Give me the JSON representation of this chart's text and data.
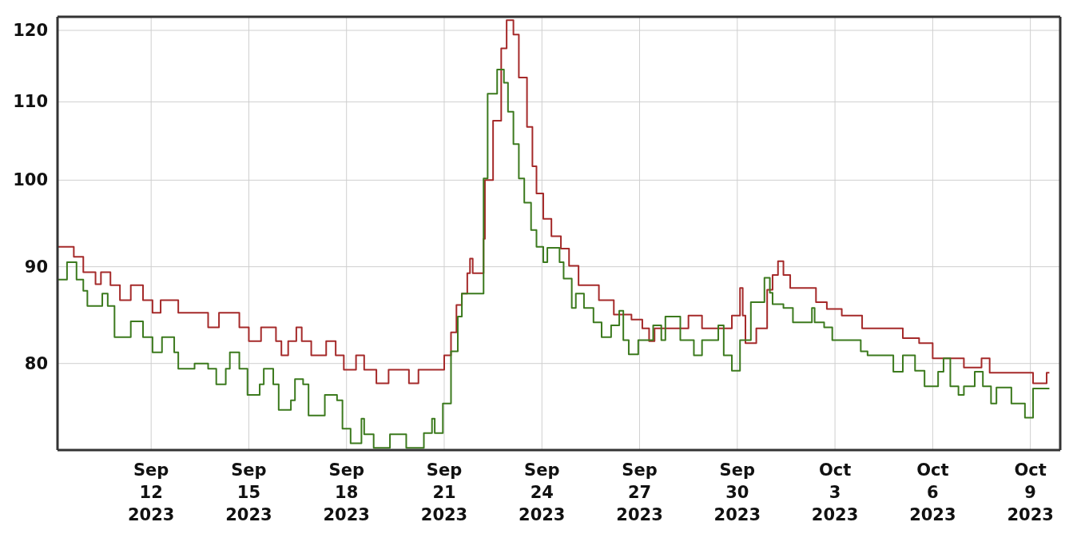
{
  "chart_data": {
    "type": "step",
    "xlim": [
      "2023-09-09T03:00",
      "2023-10-09T22:00"
    ],
    "xticks": [
      {
        "value": "2023-09-12",
        "label": "Sep\n12\n2023"
      },
      {
        "value": "2023-09-15",
        "label": "Sep\n15\n2023"
      },
      {
        "value": "2023-09-18",
        "label": "Sep\n18\n2023"
      },
      {
        "value": "2023-09-21",
        "label": "Sep\n21\n2023"
      },
      {
        "value": "2023-09-24",
        "label": "Sep\n24\n2023"
      },
      {
        "value": "2023-09-27",
        "label": "Sep\n27\n2023"
      },
      {
        "value": "2023-09-30",
        "label": "Sep\n30\n2023"
      },
      {
        "value": "2023-10-03",
        "label": "Oct\n3\n2023"
      },
      {
        "value": "2023-10-06",
        "label": "Oct\n6\n2023"
      },
      {
        "value": "2023-10-09",
        "label": "Oct\n9\n2023"
      }
    ],
    "ylim": [
      72,
      122
    ],
    "yticks": [
      80,
      90,
      100,
      110,
      120
    ],
    "log": true,
    "grid": true,
    "series": [
      {
        "color": "#a52a2a",
        "x": [
          "2023-09-09T03:00",
          "2023-09-09T15:00",
          "2023-09-09T22:00",
          "2023-09-10T07:00",
          "2023-09-10T11:00",
          "2023-09-10T18:00",
          "2023-09-11T01:00",
          "2023-09-11T09:00",
          "2023-09-11T18:00",
          "2023-09-12T01:00",
          "2023-09-12T07:00",
          "2023-09-12T20:00",
          "2023-09-13T18:00",
          "2023-09-14T02:00",
          "2023-09-14T17:00",
          "2023-09-15T00:00",
          "2023-09-15T09:00",
          "2023-09-15T20:00",
          "2023-09-16T00:00",
          "2023-09-16T05:00",
          "2023-09-16T11:00",
          "2023-09-16T15:00",
          "2023-09-16T22:00",
          "2023-09-17T09:00",
          "2023-09-17T16:00",
          "2023-09-17T22:00",
          "2023-09-18T07:00",
          "2023-09-18T13:00",
          "2023-09-18T22:00",
          "2023-09-19T07:00",
          "2023-09-19T22:00",
          "2023-09-20T05:00",
          "2023-09-21T00:00",
          "2023-09-21T05:00",
          "2023-09-21T09:00",
          "2023-09-21T13:00",
          "2023-09-21T17:00",
          "2023-09-21T19:00",
          "2023-09-21T21:00",
          "2023-09-22T05:00",
          "2023-09-22T06:00",
          "2023-09-22T12:00",
          "2023-09-22T18:00",
          "2023-09-22T22:00",
          "2023-09-23T03:00",
          "2023-09-23T07:00",
          "2023-09-23T13:00",
          "2023-09-23T17:00",
          "2023-09-23T20:00",
          "2023-09-24T01:00",
          "2023-09-24T07:00",
          "2023-09-24T14:00",
          "2023-09-24T20:00",
          "2023-09-25T03:00",
          "2023-09-25T18:00",
          "2023-09-26T05:00",
          "2023-09-26T18:00",
          "2023-09-27T02:00",
          "2023-09-27T07:00",
          "2023-09-27T11:00",
          "2023-09-28T12:00",
          "2023-09-28T22:00",
          "2023-09-29T20:00",
          "2023-09-30T02:00",
          "2023-09-30T04:00",
          "2023-09-30T06:00",
          "2023-09-30T14:00",
          "2023-09-30T22:00",
          "2023-10-01T02:00",
          "2023-10-01T06:00",
          "2023-10-01T10:00",
          "2023-10-01T15:00",
          "2023-10-02T10:00",
          "2023-10-02T18:00",
          "2023-10-03T05:00",
          "2023-10-03T20:00",
          "2023-10-05T02:00",
          "2023-10-05T14:00",
          "2023-10-06T00:00",
          "2023-10-06T23:00",
          "2023-10-07T12:00",
          "2023-10-07T18:00",
          "2023-10-09T02:00",
          "2023-10-09T12:00",
          "2023-10-09T14:00"
        ],
        "values": [
          92.2,
          91.1,
          89.4,
          88.1,
          89.4,
          88.0,
          86.4,
          88.0,
          86.4,
          85.1,
          86.4,
          85.1,
          83.6,
          85.1,
          83.6,
          82.2,
          83.6,
          82.2,
          80.8,
          82.2,
          83.6,
          82.2,
          80.8,
          82.2,
          80.8,
          79.4,
          80.8,
          79.4,
          78.1,
          79.4,
          78.1,
          79.4,
          80.8,
          83.1,
          85.9,
          87.1,
          89.3,
          90.9,
          89.3,
          93.1,
          100,
          107.5,
          117.4,
          121.5,
          119.4,
          113.3,
          106.7,
          101.7,
          98.4,
          95.4,
          93.4,
          92.0,
          90.1,
          88.0,
          86.4,
          84.9,
          84.4,
          83.5,
          82.2,
          83.5,
          84.8,
          83.5,
          84.8,
          87.7,
          84.8,
          82.0,
          83.5,
          87.5,
          89.1,
          90.6,
          89.1,
          87.7,
          86.2,
          85.5,
          84.8,
          83.5,
          82.5,
          82.0,
          80.5,
          79.6,
          80.5,
          79.1,
          78.1,
          79.1,
          79.1
        ]
      },
      {
        "color": "#3c7a1e",
        "x": [
          "2023-09-09T03:00",
          "2023-09-09T10:00",
          "2023-09-09T17:00",
          "2023-09-09T22:00",
          "2023-09-10T01:00",
          "2023-09-10T12:00",
          "2023-09-10T16:00",
          "2023-09-10T21:00",
          "2023-09-11T09:00",
          "2023-09-11T18:00",
          "2023-09-12T01:00",
          "2023-09-12T08:00",
          "2023-09-12T17:00",
          "2023-09-12T20:00",
          "2023-09-13T08:00",
          "2023-09-13T18:00",
          "2023-09-14T00:00",
          "2023-09-14T07:00",
          "2023-09-14T10:00",
          "2023-09-14T17:00",
          "2023-09-14T23:00",
          "2023-09-15T08:00",
          "2023-09-15T11:00",
          "2023-09-15T18:00",
          "2023-09-15T22:00",
          "2023-09-16T07:00",
          "2023-09-16T10:00",
          "2023-09-16T16:00",
          "2023-09-16T20:00",
          "2023-09-17T08:00",
          "2023-09-17T17:00",
          "2023-09-17T21:00",
          "2023-09-18T03:00",
          "2023-09-18T11:00",
          "2023-09-18T13:00",
          "2023-09-18T20:00",
          "2023-09-19T08:00",
          "2023-09-19T20:00",
          "2023-09-20T09:00",
          "2023-09-20T15:00",
          "2023-09-20T17:00",
          "2023-09-20T23:00",
          "2023-09-21T05:00",
          "2023-09-21T10:00",
          "2023-09-21T13:00",
          "2023-09-22T05:00",
          "2023-09-22T08:00",
          "2023-09-22T15:00",
          "2023-09-22T20:00",
          "2023-09-22T23:00",
          "2023-09-23T03:00",
          "2023-09-23T07:00",
          "2023-09-23T11:00",
          "2023-09-23T16:00",
          "2023-09-23T20:00",
          "2023-09-24T01:00",
          "2023-09-24T04:00",
          "2023-09-24T13:00",
          "2023-09-24T16:00",
          "2023-09-24T22:00",
          "2023-09-25T01:00",
          "2023-09-25T07:00",
          "2023-09-25T14:00",
          "2023-09-25T20:00",
          "2023-09-26T03:00",
          "2023-09-26T09:00",
          "2023-09-26T12:00",
          "2023-09-26T16:00",
          "2023-09-26T23:00",
          "2023-09-27T10:00",
          "2023-09-27T16:00",
          "2023-09-27T19:00",
          "2023-09-28T06:00",
          "2023-09-28T16:00",
          "2023-09-28T22:00",
          "2023-09-29T10:00",
          "2023-09-29T14:00",
          "2023-09-29T20:00",
          "2023-09-30T02:00",
          "2023-09-30T10:00",
          "2023-09-30T20:00",
          "2023-10-01T00:00",
          "2023-10-01T02:00",
          "2023-10-01T10:00",
          "2023-10-01T17:00",
          "2023-10-02T07:00",
          "2023-10-02T09:00",
          "2023-10-02T16:00",
          "2023-10-02T22:00",
          "2023-10-03T19:00",
          "2023-10-04T00:00",
          "2023-10-04T19:00",
          "2023-10-05T02:00",
          "2023-10-05T11:00",
          "2023-10-05T18:00",
          "2023-10-06T04:00",
          "2023-10-06T08:00",
          "2023-10-06T13:00",
          "2023-10-06T19:00",
          "2023-10-06T23:00",
          "2023-10-07T07:00",
          "2023-10-07T13:00",
          "2023-10-07T19:00",
          "2023-10-07T23:00",
          "2023-10-08T10:00",
          "2023-10-08T20:00",
          "2023-10-09T02:00",
          "2023-10-09T10:00",
          "2023-10-09T14:00"
        ],
        "values": [
          88.6,
          90.5,
          88.6,
          87.4,
          85.8,
          87.1,
          85.8,
          82.6,
          84.2,
          82.6,
          81.1,
          82.6,
          81.1,
          79.5,
          80.0,
          79.5,
          78.0,
          79.5,
          81.1,
          79.5,
          77.0,
          78.0,
          79.5,
          78.0,
          75.6,
          76.5,
          78.5,
          78.0,
          75.1,
          77.0,
          76.5,
          73.9,
          72.6,
          74.8,
          73.4,
          72.2,
          73.4,
          72.2,
          73.5,
          74.8,
          73.5,
          76.2,
          81.2,
          84.7,
          87.1,
          100.2,
          111.1,
          114.4,
          112.6,
          108.7,
          104.5,
          100.2,
          97.3,
          94.1,
          92.2,
          90.5,
          92.1,
          90.5,
          88.7,
          85.6,
          87.1,
          85.6,
          84.1,
          82.6,
          83.8,
          85.3,
          82.3,
          80.9,
          82.3,
          83.8,
          82.3,
          84.7,
          82.3,
          80.8,
          82.3,
          83.8,
          80.8,
          79.3,
          82.3,
          86.2,
          88.8,
          87.2,
          86.0,
          85.6,
          84.1,
          85.6,
          84.1,
          83.6,
          82.3,
          81.2,
          80.8,
          79.2,
          80.8,
          79.3,
          77.8,
          79.2,
          80.5,
          77.8,
          77.0,
          77.8,
          79.2,
          77.8,
          76.2,
          77.7,
          76.2,
          74.9,
          77.6,
          77.6,
          77.6
        ]
      }
    ]
  }
}
